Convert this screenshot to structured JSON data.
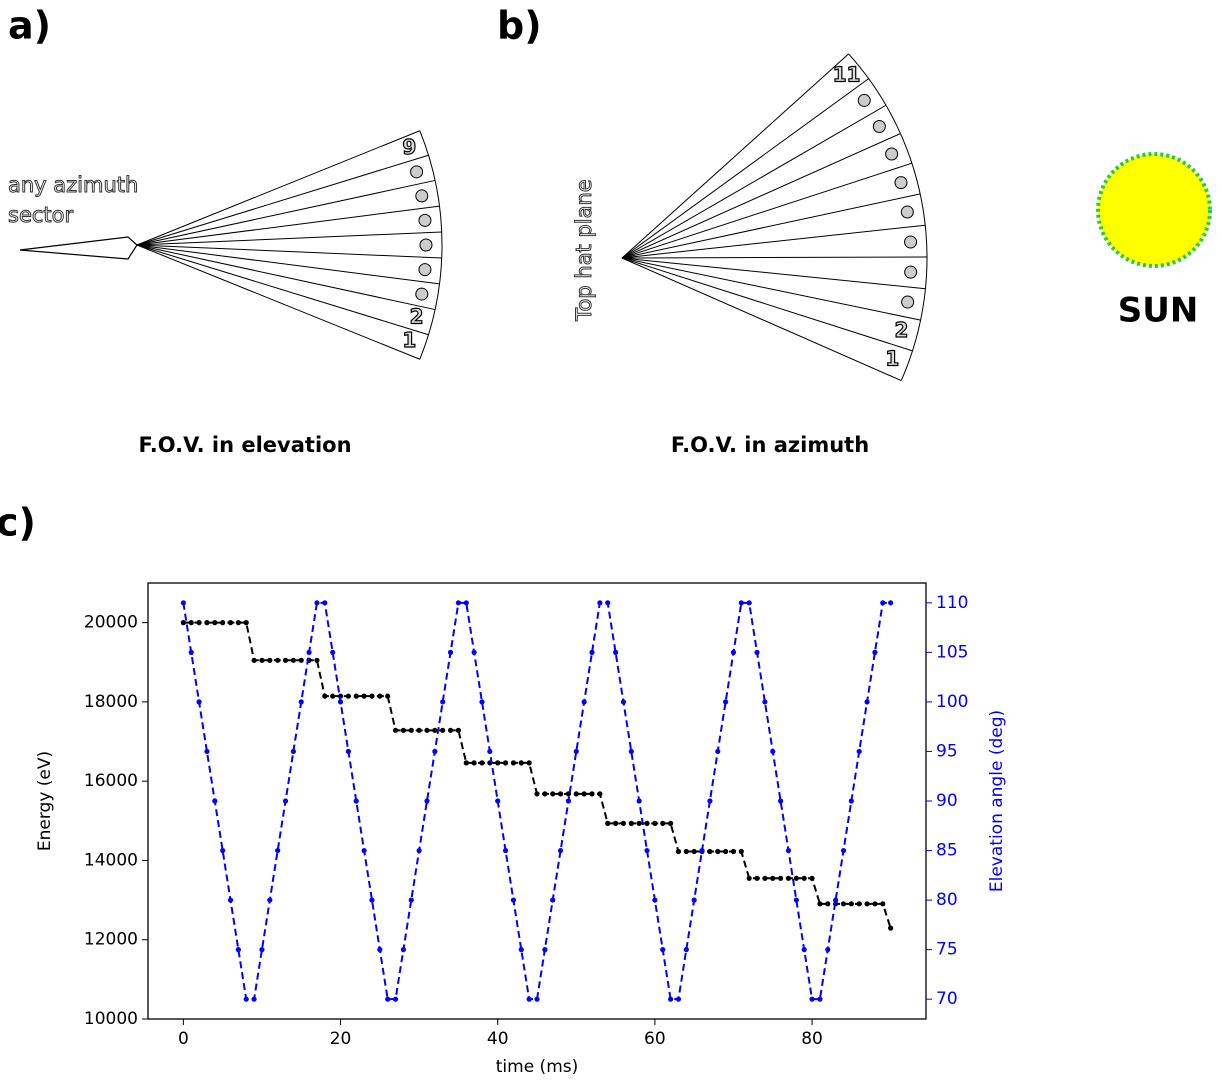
{
  "panels": {
    "a": {
      "label": "a)",
      "source": [
        "any azimuth",
        "sector"
      ],
      "sector_labels": [
        "9",
        "2",
        "1"
      ],
      "caption": "F.O.V. in elevation"
    },
    "b": {
      "label": "b)",
      "plane": "Top hat plane",
      "sector_labels": [
        "11",
        "2",
        "1"
      ],
      "caption": "F.O.V. in azimuth"
    },
    "sun": "SUN",
    "c": {
      "label": "c)"
    }
  },
  "chart_data": {
    "type": "line",
    "x": [
      0,
      1,
      2,
      3,
      4,
      5,
      6,
      7,
      8,
      9,
      10,
      11,
      12,
      13,
      14,
      15,
      16,
      17,
      18,
      19,
      20,
      21,
      22,
      23,
      24,
      25,
      26,
      27,
      28,
      29,
      30,
      31,
      32,
      33,
      34,
      35,
      36,
      37,
      38,
      39,
      40,
      41,
      42,
      43,
      44,
      45,
      46,
      47,
      48,
      49,
      50,
      51,
      52,
      53,
      54,
      55,
      56,
      57,
      58,
      59,
      60,
      61,
      62,
      63,
      64,
      65,
      66,
      67,
      68,
      69,
      70,
      71,
      72,
      73,
      74,
      75,
      76,
      77,
      78,
      79,
      80,
      81,
      82,
      83,
      84,
      85,
      86,
      87,
      88,
      89,
      90
    ],
    "series": [
      {
        "color": "#000000",
        "values": [
          20000,
          20000,
          20000,
          20000,
          20000,
          20000,
          20000,
          20000,
          20000,
          19050,
          19050,
          19050,
          19050,
          19050,
          19050,
          19050,
          19050,
          19050,
          18145,
          18145,
          18145,
          18145,
          18145,
          18145,
          18145,
          18145,
          18145,
          17283,
          17283,
          17283,
          17283,
          17283,
          17283,
          17283,
          17283,
          17283,
          16462,
          16462,
          16462,
          16462,
          16462,
          16462,
          16462,
          16462,
          16462,
          15680,
          15680,
          15680,
          15680,
          15680,
          15680,
          15680,
          15680,
          15680,
          14935,
          14935,
          14935,
          14935,
          14935,
          14935,
          14935,
          14935,
          14935,
          14226,
          14226,
          14226,
          14226,
          14226,
          14226,
          14226,
          14226,
          14226,
          13550,
          13550,
          13550,
          13550,
          13550,
          13550,
          13550,
          13550,
          13550,
          12906,
          12906,
          12906,
          12906,
          12906,
          12906,
          12906,
          12906,
          12906,
          12293
        ]
      },
      {
        "color": "#0000ff",
        "axis": "y2",
        "values": [
          110,
          105,
          100,
          95,
          90,
          85,
          80,
          75,
          70,
          70,
          75,
          80,
          85,
          90,
          95,
          100,
          105,
          110,
          110,
          105,
          100,
          95,
          90,
          85,
          80,
          75,
          70,
          70,
          75,
          80,
          85,
          90,
          95,
          100,
          105,
          110,
          110,
          105,
          100,
          95,
          90,
          85,
          80,
          75,
          70,
          70,
          75,
          80,
          85,
          90,
          95,
          100,
          105,
          110,
          110,
          105,
          100,
          95,
          90,
          85,
          80,
          75,
          70,
          70,
          75,
          80,
          85,
          90,
          95,
          100,
          105,
          110,
          110,
          105,
          100,
          95,
          90,
          85,
          80,
          75,
          70,
          70,
          75,
          80,
          85,
          90,
          95,
          100,
          105,
          110,
          110
        ]
      }
    ],
    "xlabel": "time (ms)",
    "ylabel": "Energy (eV)",
    "y2label": "Elevation angle (deg)",
    "xlim": [
      -4.5,
      94.5
    ],
    "xticks": [
      0,
      20,
      40,
      60,
      80
    ],
    "ylim": [
      10000,
      21000
    ],
    "yticks": [
      10000,
      12000,
      14000,
      16000,
      18000,
      20000
    ],
    "y2lim": [
      68,
      112
    ],
    "y2ticks": [
      70,
      75,
      80,
      85,
      90,
      95,
      100,
      105,
      110
    ],
    "y2color": "#0000ff",
    "linestyle": "dashed"
  }
}
